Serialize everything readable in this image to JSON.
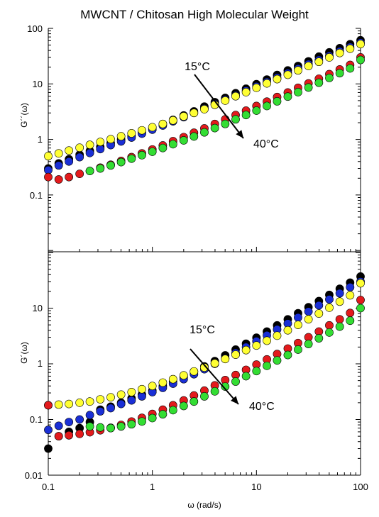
{
  "title": "MWCNT / Chitosan High Molecular Weight",
  "colors": {
    "15C": "#000000",
    "20C": "#ffff33",
    "25C": "#1a2fd6",
    "30C": "#e31a1c",
    "40C": "#33dd33"
  },
  "chart_data": [
    {
      "type": "scatter",
      "panel": "top",
      "ylabel": "G´´(ω)",
      "xlabel": "",
      "xscale": "log",
      "yscale": "log",
      "xlim": [
        0.1,
        100
      ],
      "ylim": [
        0.01,
        100
      ],
      "ytick_labels": [
        "100",
        "10",
        "1",
        "0.1"
      ],
      "annotation_top": "15°C",
      "annotation_bottom": "40°C",
      "x": [
        0.1,
        0.126,
        0.158,
        0.2,
        0.251,
        0.316,
        0.398,
        0.501,
        0.631,
        0.794,
        1,
        1.26,
        1.58,
        2,
        2.51,
        3.16,
        3.98,
        5.01,
        6.31,
        7.94,
        10,
        12.6,
        15.8,
        20,
        25.1,
        31.6,
        39.8,
        50.1,
        63.1,
        79.4,
        100
      ],
      "series": [
        {
          "color_key": "15C",
          "values": [
            0.3,
            0.37,
            0.44,
            0.53,
            0.62,
            0.73,
            0.86,
            1.0,
            1.15,
            1.35,
            1.6,
            1.9,
            2.25,
            2.7,
            3.2,
            3.9,
            4.7,
            5.6,
            6.8,
            8.2,
            9.9,
            12,
            14.5,
            17.5,
            21,
            25.5,
            31,
            37,
            44,
            52,
            61
          ]
        },
        {
          "color_key": "25C",
          "values": [
            0.28,
            0.34,
            0.4,
            0.48,
            0.57,
            0.67,
            0.79,
            0.92,
            1.08,
            1.27,
            1.5,
            1.78,
            2.12,
            2.52,
            3.0,
            3.6,
            4.35,
            5.2,
            6.2,
            7.5,
            9.0,
            10.8,
            13,
            15.6,
            18.8,
            22.6,
            27,
            32,
            38.5,
            46,
            55
          ]
        },
        {
          "color_key": "20C",
          "values": [
            0.5,
            0.56,
            0.63,
            0.71,
            0.8,
            0.9,
            1.01,
            1.14,
            1.29,
            1.46,
            1.66,
            1.9,
            2.2,
            2.6,
            3.0,
            3.5,
            4.2,
            5.0,
            6.0,
            7.1,
            8.5,
            10.2,
            12.2,
            14.6,
            17.5,
            21,
            25,
            30,
            36,
            43,
            52
          ]
        },
        {
          "color_key": "30C",
          "values": [
            0.21,
            0.19,
            0.21,
            0.24,
            0.27,
            0.31,
            0.35,
            0.41,
            0.48,
            0.56,
            0.66,
            0.78,
            0.93,
            1.1,
            1.32,
            1.58,
            1.9,
            2.3,
            2.75,
            3.3,
            4.0,
            4.8,
            5.8,
            7.0,
            8.5,
            10.2,
            12.4,
            15,
            18.2,
            22,
            30
          ]
        },
        {
          "color_key": "40C",
          "values": [
            null,
            null,
            null,
            null,
            0.27,
            0.3,
            0.34,
            0.39,
            0.45,
            0.52,
            0.6,
            0.7,
            0.82,
            0.96,
            1.13,
            1.34,
            1.6,
            1.9,
            2.3,
            2.75,
            3.3,
            4.0,
            4.85,
            5.9,
            7.1,
            8.6,
            10.5,
            12.8,
            15.6,
            19,
            27
          ]
        }
      ]
    },
    {
      "type": "scatter",
      "panel": "bottom",
      "ylabel": "G´(ω)",
      "xlabel": "ω (rad/s)",
      "xscale": "log",
      "yscale": "log",
      "xlim": [
        0.1,
        100
      ],
      "ylim": [
        0.01,
        60
      ],
      "ytick_labels": [
        "10",
        "1",
        "0.1",
        "0.01"
      ],
      "xtick_labels": [
        "0.1",
        "1",
        "10",
        "100"
      ],
      "annotation_top": "15°C",
      "annotation_bottom": "40°C",
      "x": [
        0.1,
        0.126,
        0.158,
        0.2,
        0.251,
        0.316,
        0.398,
        0.501,
        0.631,
        0.794,
        1,
        1.26,
        1.58,
        2,
        2.51,
        3.16,
        3.98,
        5.01,
        6.31,
        7.94,
        10,
        12.6,
        15.8,
        20,
        25.1,
        31.6,
        39.8,
        50.1,
        63.1,
        79.4,
        100
      ],
      "series": [
        {
          "color_key": "15C",
          "values": [
            0.03,
            0.05,
            0.06,
            0.07,
            0.09,
            0.15,
            0.17,
            0.2,
            0.24,
            0.28,
            0.33,
            0.4,
            0.48,
            0.58,
            0.72,
            0.9,
            1.12,
            1.42,
            1.8,
            2.3,
            2.95,
            3.8,
            4.9,
            6.3,
            8.1,
            10.4,
            13.4,
            17.3,
            22.3,
            28.7,
            37
          ]
        },
        {
          "color_key": "25C",
          "values": [
            0.065,
            0.077,
            0.09,
            0.1,
            0.12,
            0.14,
            0.16,
            0.19,
            0.22,
            0.26,
            0.31,
            0.37,
            0.44,
            0.53,
            0.65,
            0.8,
            1.0,
            1.25,
            1.57,
            2.0,
            2.55,
            3.25,
            4.15,
            5.3,
            6.8,
            8.7,
            11.2,
            14.4,
            18.5,
            23.8,
            30
          ]
        },
        {
          "color_key": "20C",
          "values": [
            0.18,
            0.185,
            0.19,
            0.2,
            0.21,
            0.23,
            0.25,
            0.28,
            0.31,
            0.35,
            0.4,
            0.46,
            0.53,
            0.62,
            0.73,
            0.86,
            1.02,
            1.22,
            1.46,
            1.76,
            2.13,
            2.6,
            3.2,
            4.0,
            5.0,
            6.3,
            8.0,
            10.2,
            13.1,
            17.0,
            28
          ]
        },
        {
          "color_key": "30C",
          "values": [
            0.18,
            0.05,
            0.052,
            0.055,
            0.059,
            0.064,
            0.071,
            0.08,
            0.092,
            0.107,
            0.126,
            0.15,
            0.18,
            0.22,
            0.27,
            0.33,
            0.41,
            0.51,
            0.63,
            0.78,
            0.97,
            1.2,
            1.5,
            1.88,
            2.36,
            3.0,
            3.8,
            4.9,
            6.3,
            8.2,
            14
          ]
        },
        {
          "color_key": "40C",
          "values": [
            null,
            null,
            null,
            null,
            0.075,
            0.072,
            0.07,
            0.075,
            0.082,
            0.092,
            0.106,
            0.124,
            0.147,
            0.175,
            0.21,
            0.26,
            0.32,
            0.39,
            0.48,
            0.6,
            0.74,
            0.92,
            1.15,
            1.44,
            1.8,
            2.27,
            2.87,
            3.65,
            4.65,
            5.95,
            10
          ]
        }
      ]
    }
  ]
}
